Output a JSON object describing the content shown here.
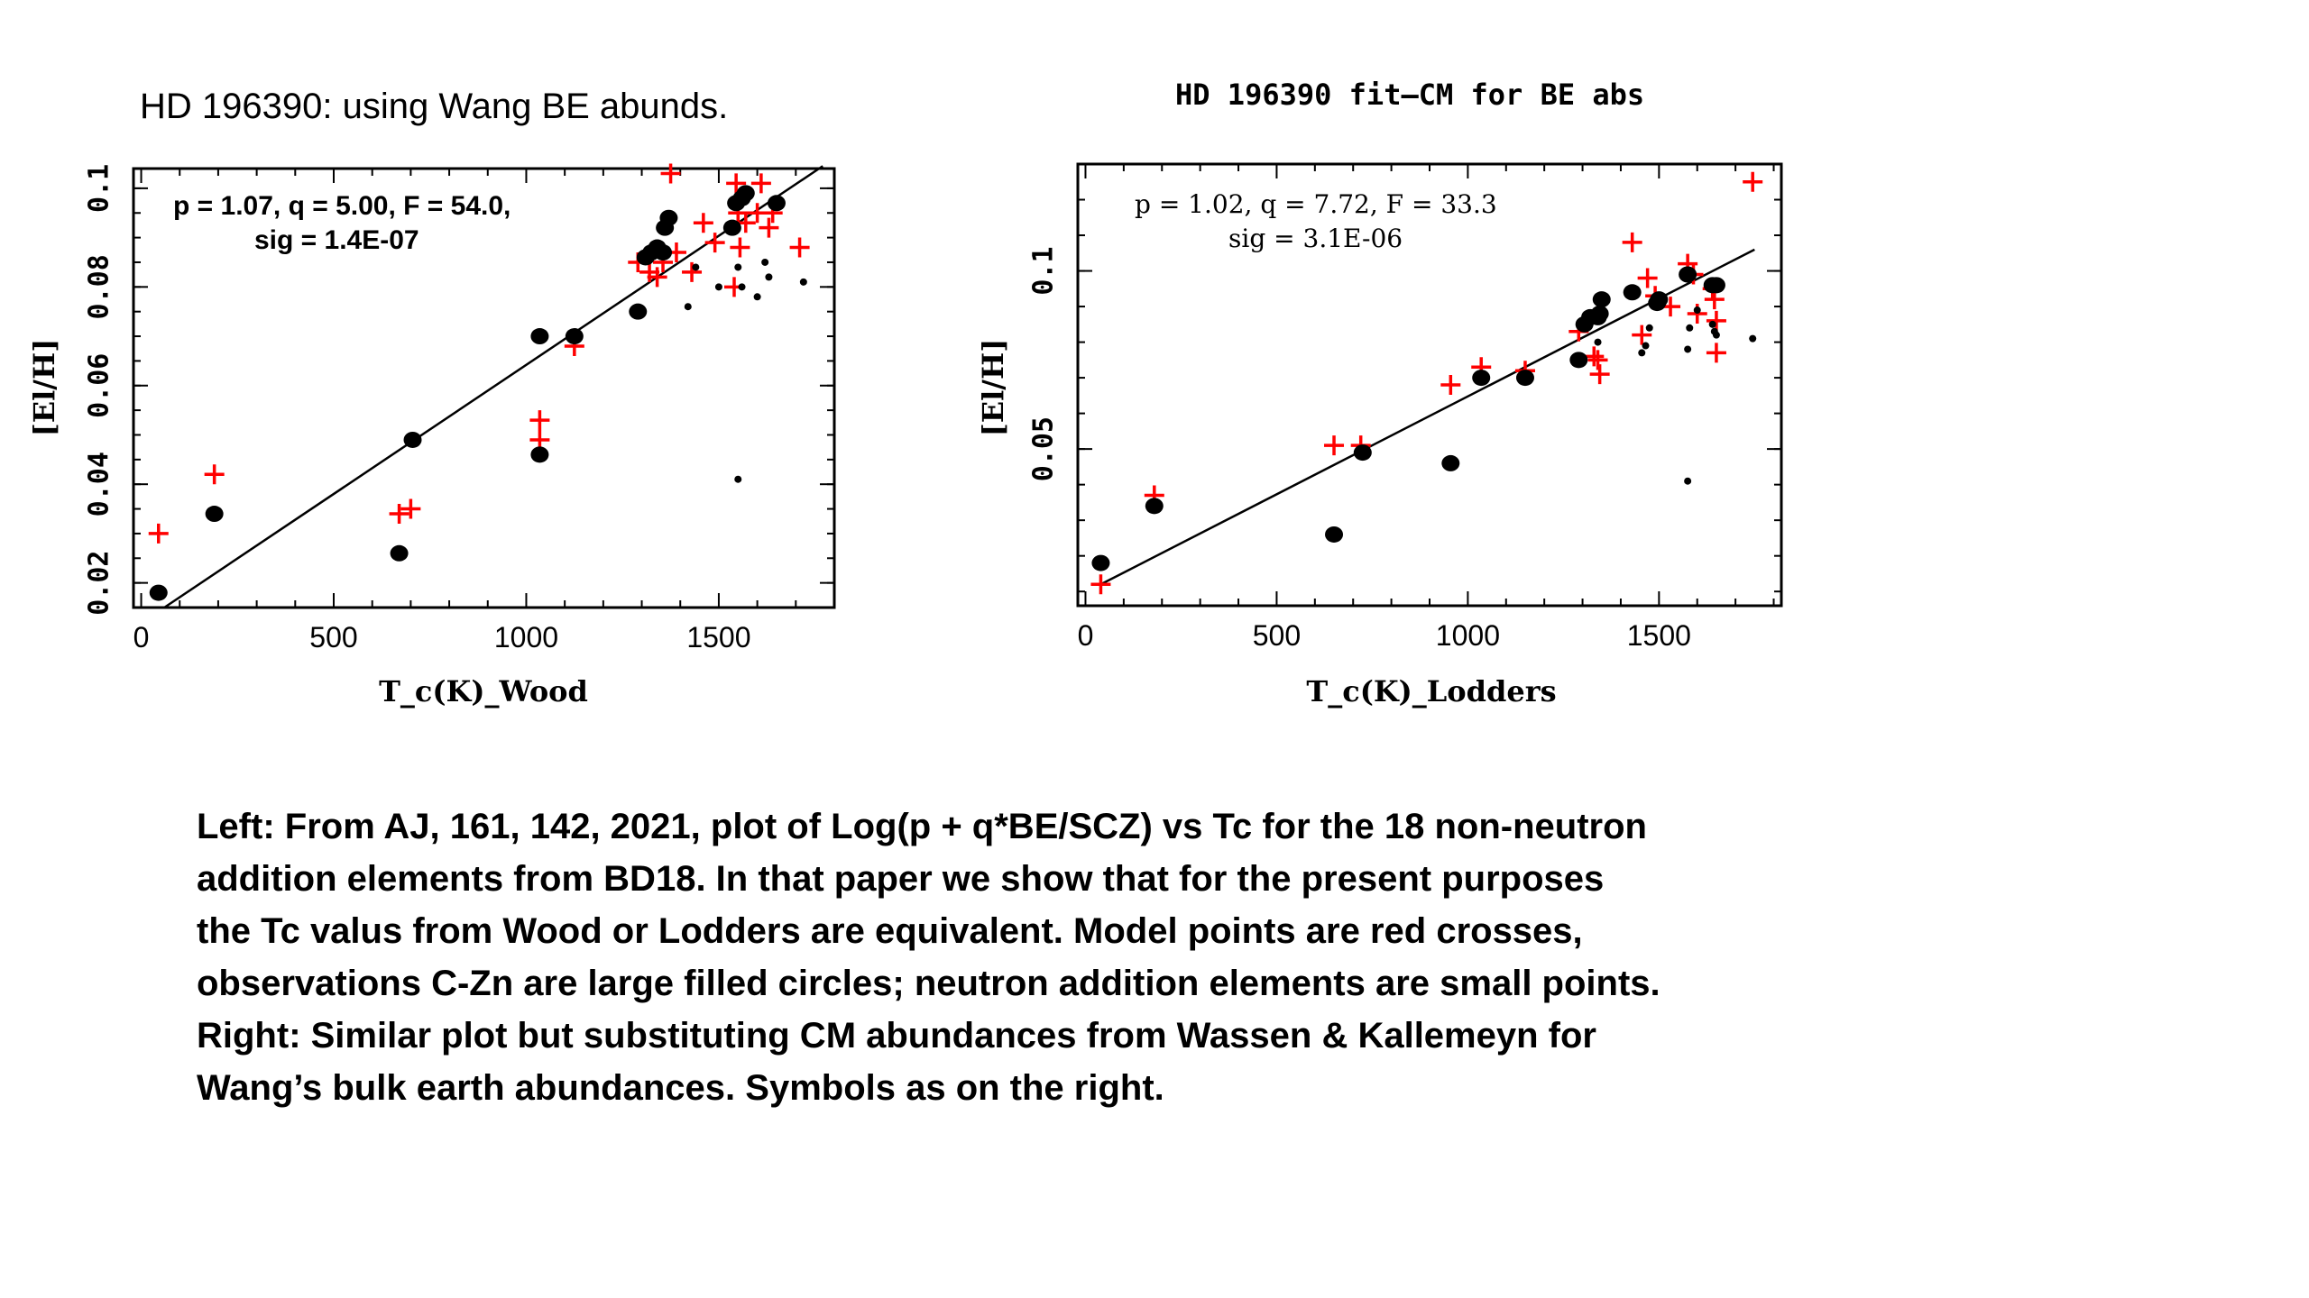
{
  "slide": {
    "left_title": "HD 196390: using Wang BE abunds.",
    "right_title": "HD 196390 fit—CM for BE abs",
    "caption_lines": [
      "Left: From AJ, 161, 142, 2021, plot of Log(p + q*BE/SCZ) vs Tc for the 18 non-neutron",
      "addition elements from BD18.  In that paper we show that for the present purposes",
      "the Tc valus from Wood or Lodders are equivalent.  Model points are red crosses,",
      "observations C-Zn are large filled circles; neutron addition elements are small points.",
      "Right: Similar plot but substituting CM abundances from Wassen & Kallemeyn for",
      "Wang’s bulk earth abundances.   Symbols as on the right."
    ]
  },
  "colors": {
    "model": "#ff0000",
    "obs": "#000000",
    "fit": "#000000"
  },
  "chart_data": [
    {
      "type": "scatter",
      "title": "",
      "xlabel": "T_c(K)_Wood",
      "ylabel": "[El/H]",
      "xlim": [
        -20,
        1800
      ],
      "ylim": [
        0.015,
        0.104
      ],
      "xticks": [
        0,
        500,
        1000,
        1500
      ],
      "yticks": [
        0.02,
        0.04,
        0.06,
        0.08,
        0.1
      ],
      "ytick_labels": [
        "0.02",
        "0.04",
        "0.06",
        "0.08",
        "0.1"
      ],
      "annotation": [
        "p = 1.07, q = 5.00, F = 54.0,",
        "sig = 1.4E-07"
      ],
      "fit_line": [
        [
          60,
          0.015
        ],
        [
          1770,
          0.1045
        ]
      ],
      "series": [
        {
          "name": "",
          "marker": "cross",
          "points": [
            [
              45,
              0.03
            ],
            [
              190,
              0.042
            ],
            [
              670,
              0.034
            ],
            [
              700,
              0.035
            ],
            [
              1035,
              0.053
            ],
            [
              1035,
              0.049
            ],
            [
              1125,
              0.068
            ],
            [
              1290,
              0.085
            ],
            [
              1320,
              0.083
            ],
            [
              1340,
              0.082
            ],
            [
              1355,
              0.085
            ],
            [
              1375,
              0.103
            ],
            [
              1390,
              0.087
            ],
            [
              1430,
              0.083
            ],
            [
              1460,
              0.093
            ],
            [
              1490,
              0.089
            ],
            [
              1540,
              0.08
            ],
            [
              1545,
              0.101
            ],
            [
              1550,
              0.095
            ],
            [
              1555,
              0.088
            ],
            [
              1570,
              0.093
            ],
            [
              1600,
              0.095
            ],
            [
              1610,
              0.101
            ],
            [
              1630,
              0.092
            ],
            [
              1640,
              0.095
            ],
            [
              1710,
              0.088
            ]
          ]
        },
        {
          "name": "",
          "marker": "large-dot",
          "points": [
            [
              45,
              0.018
            ],
            [
              190,
              0.034
            ],
            [
              670,
              0.026
            ],
            [
              705,
              0.049
            ],
            [
              1035,
              0.046
            ],
            [
              1035,
              0.07
            ],
            [
              1125,
              0.07
            ],
            [
              1290,
              0.075
            ],
            [
              1310,
              0.086
            ],
            [
              1325,
              0.087
            ],
            [
              1340,
              0.088
            ],
            [
              1355,
              0.087
            ],
            [
              1360,
              0.092
            ],
            [
              1370,
              0.094
            ],
            [
              1535,
              0.092
            ],
            [
              1545,
              0.097
            ],
            [
              1560,
              0.098
            ],
            [
              1570,
              0.099
            ],
            [
              1650,
              0.097
            ]
          ]
        },
        {
          "name": "",
          "marker": "small-dot",
          "points": [
            [
              1420,
              0.076
            ],
            [
              1440,
              0.084
            ],
            [
              1500,
              0.08
            ],
            [
              1550,
              0.041
            ],
            [
              1550,
              0.084
            ],
            [
              1560,
              0.08
            ],
            [
              1600,
              0.078
            ],
            [
              1620,
              0.085
            ],
            [
              1630,
              0.082
            ],
            [
              1720,
              0.081
            ]
          ]
        }
      ]
    },
    {
      "type": "scatter",
      "title": "HD 196390 fit—CM for BE abs",
      "xlabel": "T_c(K)_Lodders",
      "ylabel": "[El/H]",
      "xlim": [
        -20,
        1820
      ],
      "ylim": [
        0.006,
        0.13
      ],
      "xticks": [
        0,
        500,
        1000,
        1500
      ],
      "yticks": [
        0.05,
        0.1
      ],
      "ytick_labels": [
        "0.05",
        "0.1"
      ],
      "annotation": [
        "p = 1.02, q = 7.72, F = 33.3",
        "sig = 3.1E-06"
      ],
      "fit_line": [
        [
          40,
          0.012
        ],
        [
          1750,
          0.106
        ]
      ],
      "series": [
        {
          "name": "",
          "marker": "cross",
          "points": [
            [
              40,
              0.012
            ],
            [
              180,
              0.037
            ],
            [
              650,
              0.051
            ],
            [
              720,
              0.051
            ],
            [
              955,
              0.068
            ],
            [
              1035,
              0.073
            ],
            [
              1150,
              0.072
            ],
            [
              1290,
              0.083
            ],
            [
              1330,
              0.076
            ],
            [
              1340,
              0.075
            ],
            [
              1345,
              0.071
            ],
            [
              1430,
              0.108
            ],
            [
              1455,
              0.082
            ],
            [
              1470,
              0.098
            ],
            [
              1490,
              0.093
            ],
            [
              1530,
              0.09
            ],
            [
              1575,
              0.102
            ],
            [
              1590,
              0.099
            ],
            [
              1600,
              0.088
            ],
            [
              1640,
              0.095
            ],
            [
              1645,
              0.092
            ],
            [
              1650,
              0.077
            ],
            [
              1650,
              0.086
            ],
            [
              1745,
              0.125
            ]
          ]
        },
        {
          "name": "",
          "marker": "large-dot",
          "points": [
            [
              40,
              0.018
            ],
            [
              180,
              0.034
            ],
            [
              650,
              0.026
            ],
            [
              725,
              0.049
            ],
            [
              955,
              0.046
            ],
            [
              1035,
              0.07
            ],
            [
              1150,
              0.07
            ],
            [
              1290,
              0.075
            ],
            [
              1305,
              0.085
            ],
            [
              1320,
              0.087
            ],
            [
              1340,
              0.087
            ],
            [
              1345,
              0.088
            ],
            [
              1350,
              0.092
            ],
            [
              1430,
              0.094
            ],
            [
              1495,
              0.091
            ],
            [
              1500,
              0.092
            ],
            [
              1575,
              0.099
            ],
            [
              1640,
              0.096
            ],
            [
              1650,
              0.096
            ]
          ]
        },
        {
          "name": "",
          "marker": "small-dot",
          "points": [
            [
              1340,
              0.08
            ],
            [
              1455,
              0.077
            ],
            [
              1465,
              0.079
            ],
            [
              1475,
              0.084
            ],
            [
              1575,
              0.078
            ],
            [
              1575,
              0.041
            ],
            [
              1580,
              0.084
            ],
            [
              1600,
              0.089
            ],
            [
              1640,
              0.085
            ],
            [
              1645,
              0.083
            ],
            [
              1650,
              0.082
            ],
            [
              1745,
              0.081
            ]
          ]
        }
      ]
    }
  ]
}
